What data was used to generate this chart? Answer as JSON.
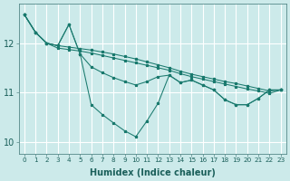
{
  "xlabel": "Humidex (Indice chaleur)",
  "bg_color": "#cceaea",
  "grid_color": "#ffffff",
  "line_color": "#1a7a6e",
  "xlim": [
    -0.5,
    23.5
  ],
  "ylim": [
    9.75,
    12.8
  ],
  "yticks": [
    10,
    11,
    12
  ],
  "xticks": [
    0,
    1,
    2,
    3,
    4,
    5,
    6,
    7,
    8,
    9,
    10,
    11,
    12,
    13,
    14,
    15,
    16,
    17,
    18,
    19,
    20,
    21,
    22,
    23
  ],
  "line1": [
    12.58,
    12.22,
    12.0,
    11.95,
    12.38,
    11.78,
    10.75,
    10.55,
    10.38,
    10.22,
    10.1,
    10.42,
    10.78,
    11.35,
    11.2,
    11.25,
    11.15,
    11.05,
    10.85,
    10.75,
    10.75,
    10.88,
    11.05,
    11.05
  ],
  "line2": [
    12.58,
    12.22,
    12.0,
    11.9,
    11.87,
    11.84,
    11.8,
    11.75,
    11.7,
    11.65,
    11.6,
    11.55,
    11.5,
    11.45,
    11.38,
    11.32,
    11.27,
    11.22,
    11.17,
    11.12,
    11.07,
    11.03,
    10.98,
    11.05
  ],
  "line3": [
    12.58,
    12.22,
    12.0,
    11.95,
    11.92,
    11.89,
    11.86,
    11.82,
    11.78,
    11.73,
    11.68,
    11.62,
    11.56,
    11.5,
    11.43,
    11.37,
    11.32,
    11.27,
    11.22,
    11.18,
    11.13,
    11.08,
    11.03,
    11.05
  ],
  "line4": [
    12.58,
    12.22,
    12.0,
    11.95,
    12.38,
    11.78,
    11.52,
    11.4,
    11.3,
    11.22,
    11.15,
    11.22,
    11.32,
    11.35,
    11.2,
    11.25,
    11.15,
    11.05,
    10.85,
    10.75,
    10.75,
    10.88,
    11.05,
    11.05
  ]
}
